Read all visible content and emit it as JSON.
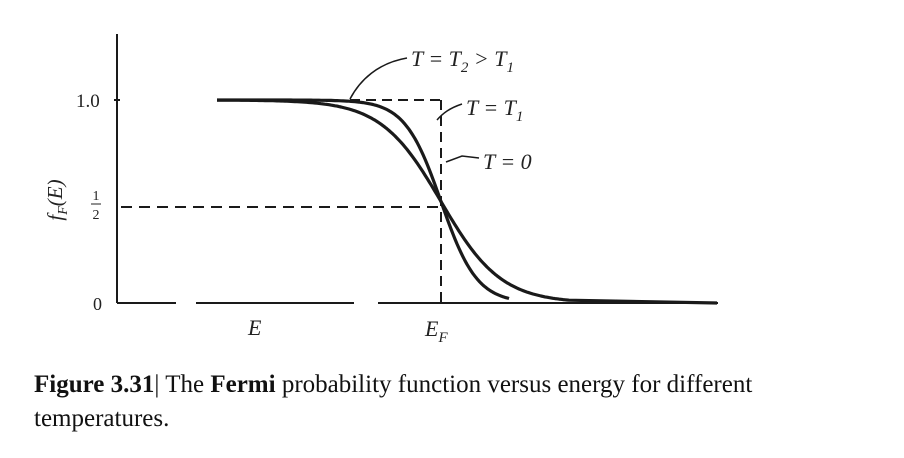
{
  "figure": {
    "caption_label": "Figure 3.31",
    "caption_sep": "|",
    "caption_pre": "The",
    "caption_bold": "Fermi",
    "caption_post": "probability function versus energy for different temperatures."
  },
  "chart_data": {
    "type": "line",
    "ylabel": "f_F(E)",
    "xlabel": "E",
    "x_tick_labels": [
      "E_F"
    ],
    "y_tick_labels": [
      "1.0",
      "1/2",
      "0"
    ],
    "ylim": [
      0,
      1
    ],
    "grid": false,
    "legend": "none (curves labeled directly)",
    "annotations": [
      "T = T_2 > T_1",
      "T = T_1",
      "T = 0"
    ],
    "series": [
      {
        "name": "T = 0",
        "kind": "step",
        "x": [
          -7,
          0,
          0,
          6
        ],
        "values": [
          1,
          1,
          0,
          0
        ]
      },
      {
        "name": "T = T_1",
        "kind": "fermi",
        "kT": 0.45,
        "x": [
          -7,
          -2,
          -1,
          0,
          1,
          2,
          6
        ],
        "values": [
          1.0,
          0.99,
          0.9,
          0.5,
          0.1,
          0.01,
          0
        ]
      },
      {
        "name": "T = T_2 > T_1",
        "kind": "fermi",
        "kT": 0.75,
        "x": [
          -7,
          -2,
          -1,
          0,
          1,
          2,
          6
        ],
        "values": [
          1.0,
          0.94,
          0.79,
          0.5,
          0.21,
          0.06,
          0
        ]
      }
    ]
  },
  "style": {
    "line_color": "#1a1a1a",
    "dash_color": "#1a1a1a"
  }
}
